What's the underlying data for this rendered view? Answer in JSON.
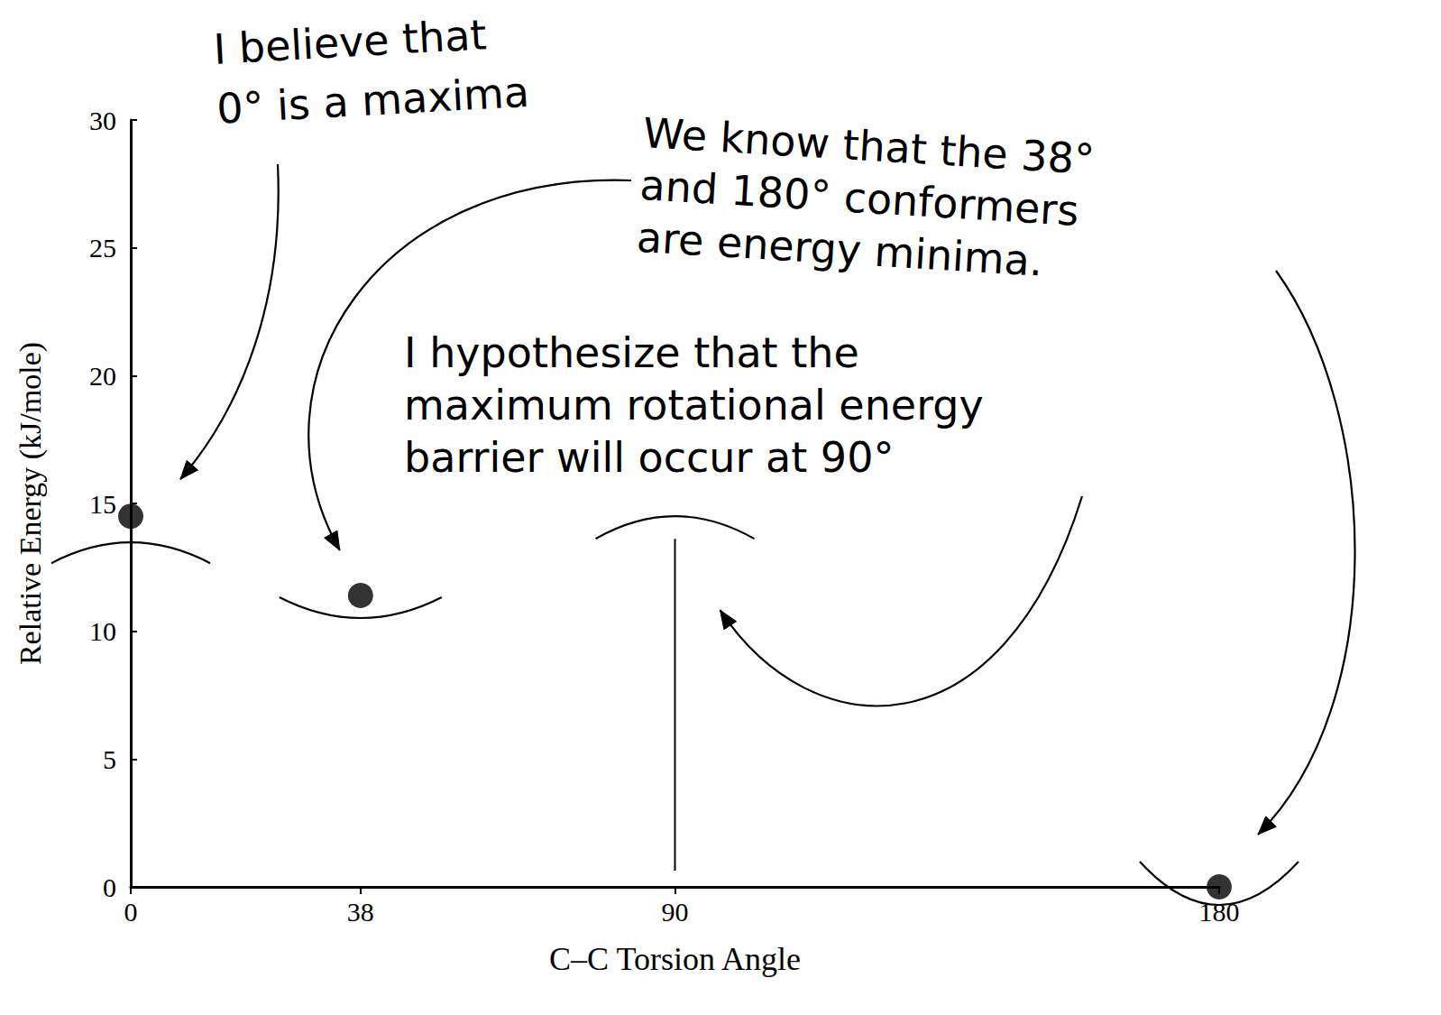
{
  "chart_data": {
    "type": "scatter",
    "x_label": "C–C Torsion Angle",
    "y_label": "Relative Energy (kJ/mole)",
    "x": [
      0,
      38,
      180
    ],
    "values": [
      14.5,
      11.4,
      0
    ],
    "color": "#000000",
    "marker": "circle",
    "xlim": [
      0,
      180
    ],
    "xticks": [
      0,
      38,
      90,
      180
    ],
    "ylim": [
      0,
      30
    ],
    "yticks": [
      0,
      5,
      10,
      15,
      20,
      25,
      30
    ],
    "grid": false,
    "annotations": [
      {
        "text": "I believe that\n0° is a maxima",
        "x": [
          0
        ]
      },
      {
        "text": "We know that the 38°\nand 180° conformers\nare energy minima.",
        "x": [
          38,
          180
        ]
      },
      {
        "text": "I hypothesize that the\nmaximum rotational energy\nbarrier will occur at 90°",
        "x": [
          90
        ]
      }
    ]
  }
}
